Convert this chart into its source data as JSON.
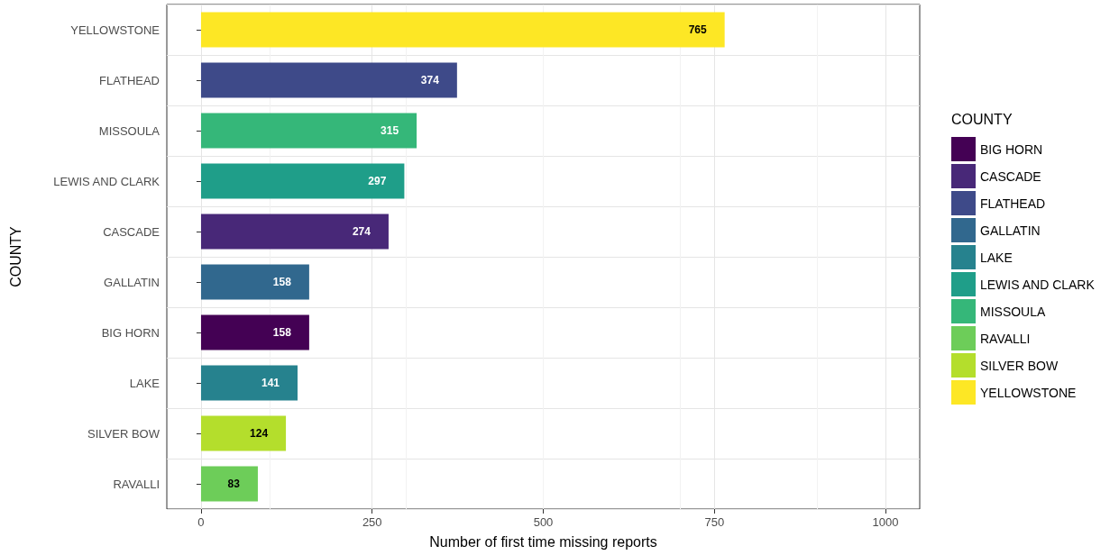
{
  "chart_data": {
    "type": "bar",
    "orientation": "horizontal",
    "xlabel": "Number of first time missing reports",
    "ylabel": "COUNTY",
    "legend_title": "COUNTY",
    "categories": [
      "YELLOWSTONE",
      "FLATHEAD",
      "MISSOULA",
      "LEWIS AND CLARK",
      "CASCADE",
      "GALLATIN",
      "BIG HORN",
      "LAKE",
      "SILVER BOW",
      "RAVALLI"
    ],
    "series": [
      {
        "name": "BIG HORN",
        "color": "#440154",
        "values": [
          null,
          null,
          null,
          null,
          null,
          null,
          158,
          null,
          null,
          null
        ]
      },
      {
        "name": "CASCADE",
        "color": "#482878",
        "values": [
          null,
          null,
          null,
          null,
          274,
          null,
          null,
          null,
          null,
          null
        ]
      },
      {
        "name": "FLATHEAD",
        "color": "#3e4a89",
        "values": [
          null,
          374,
          null,
          null,
          null,
          null,
          null,
          null,
          null,
          null
        ]
      },
      {
        "name": "GALLATIN",
        "color": "#31688e",
        "values": [
          null,
          null,
          null,
          null,
          null,
          158,
          null,
          null,
          null,
          null
        ]
      },
      {
        "name": "LAKE",
        "color": "#26828e",
        "values": [
          null,
          null,
          null,
          null,
          null,
          null,
          null,
          141,
          null,
          null
        ]
      },
      {
        "name": "LEWIS AND CLARK",
        "color": "#1f9e89",
        "values": [
          null,
          null,
          null,
          297,
          null,
          null,
          null,
          null,
          null,
          null
        ]
      },
      {
        "name": "MISSOULA",
        "color": "#35b779",
        "values": [
          null,
          null,
          315,
          null,
          null,
          null,
          null,
          null,
          null,
          null
        ]
      },
      {
        "name": "RAVALLI",
        "color": "#6dcd59",
        "values": [
          null,
          null,
          null,
          null,
          null,
          null,
          null,
          null,
          null,
          83
        ]
      },
      {
        "name": "SILVER BOW",
        "color": "#b4de2c",
        "values": [
          null,
          null,
          null,
          null,
          null,
          null,
          null,
          null,
          124,
          null
        ]
      },
      {
        "name": "YELLOWSTONE",
        "color": "#fde725",
        "values": [
          765,
          null,
          null,
          null,
          null,
          null,
          null,
          null,
          null,
          null
        ]
      }
    ],
    "xlim": [
      -50,
      1050
    ],
    "xticks": [
      0,
      250,
      500,
      750,
      1000
    ],
    "grid": true,
    "legend": "right",
    "data_labels": true
  }
}
